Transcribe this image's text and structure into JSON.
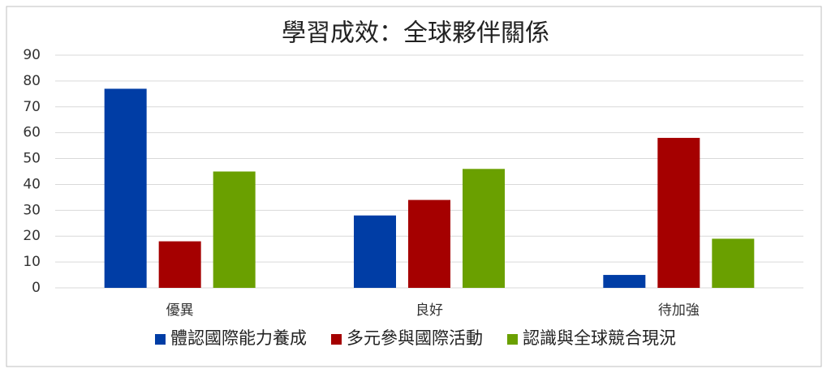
{
  "chart_data": {
    "type": "bar",
    "title": "學習成效：全球夥伴關係",
    "categories": [
      "優異",
      "良好",
      "待加強"
    ],
    "series": [
      {
        "name": "體認國際能力養成",
        "color": "#003da5",
        "values": [
          77,
          28,
          5
        ]
      },
      {
        "name": "多元參與國際活動",
        "color": "#a50000",
        "values": [
          18,
          34,
          58
        ]
      },
      {
        "name": "認識與全球競合現況",
        "color": "#6aa000",
        "values": [
          45,
          46,
          19
        ]
      }
    ],
    "ylim": [
      0,
      90
    ],
    "yticks": [
      0,
      10,
      20,
      30,
      40,
      50,
      60,
      70,
      80,
      90
    ],
    "grid": true,
    "legend": "bottom"
  }
}
